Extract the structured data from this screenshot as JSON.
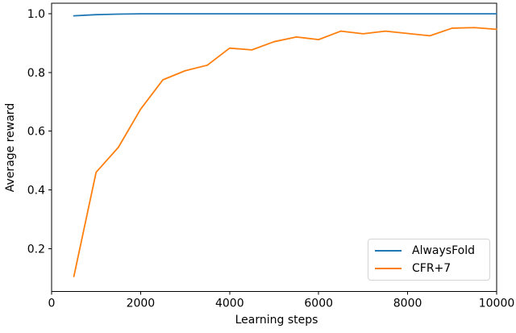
{
  "chart_data": {
    "type": "line",
    "title": "",
    "xlabel": "Learning steps",
    "ylabel": "Average reward",
    "xlim": [
      0,
      10000
    ],
    "ylim": [
      0.054,
      1.036
    ],
    "x_ticks": [
      0,
      2000,
      4000,
      6000,
      8000,
      10000
    ],
    "y_ticks": [
      0.2,
      0.4,
      0.6,
      0.8,
      1.0
    ],
    "grid": false,
    "legend_position": "lower right",
    "axis_color": "#000000",
    "tick_label_color": "#000000",
    "x": [
      500,
      1000,
      1500,
      2000,
      2500,
      3000,
      3500,
      4000,
      4500,
      5000,
      5500,
      6000,
      6500,
      7000,
      7500,
      8000,
      8500,
      9000,
      9500,
      10000
    ],
    "series": [
      {
        "name": "AlwaysFold",
        "color": "#1f77b4",
        "values": [
          0.993,
          0.997,
          0.999,
          1.0,
          1.0,
          1.0,
          1.0,
          1.0,
          1.0,
          1.0,
          1.0,
          1.0,
          1.0,
          1.0,
          1.0,
          1.0,
          1.0,
          1.0,
          1.0,
          1.0
        ]
      },
      {
        "name": "CFR+7",
        "color": "#ff7f0e",
        "values": [
          0.105,
          0.46,
          0.545,
          0.675,
          0.775,
          0.806,
          0.825,
          0.883,
          0.877,
          0.905,
          0.921,
          0.912,
          0.941,
          0.932,
          0.941,
          0.933,
          0.925,
          0.951,
          0.953,
          0.947
        ]
      }
    ]
  }
}
